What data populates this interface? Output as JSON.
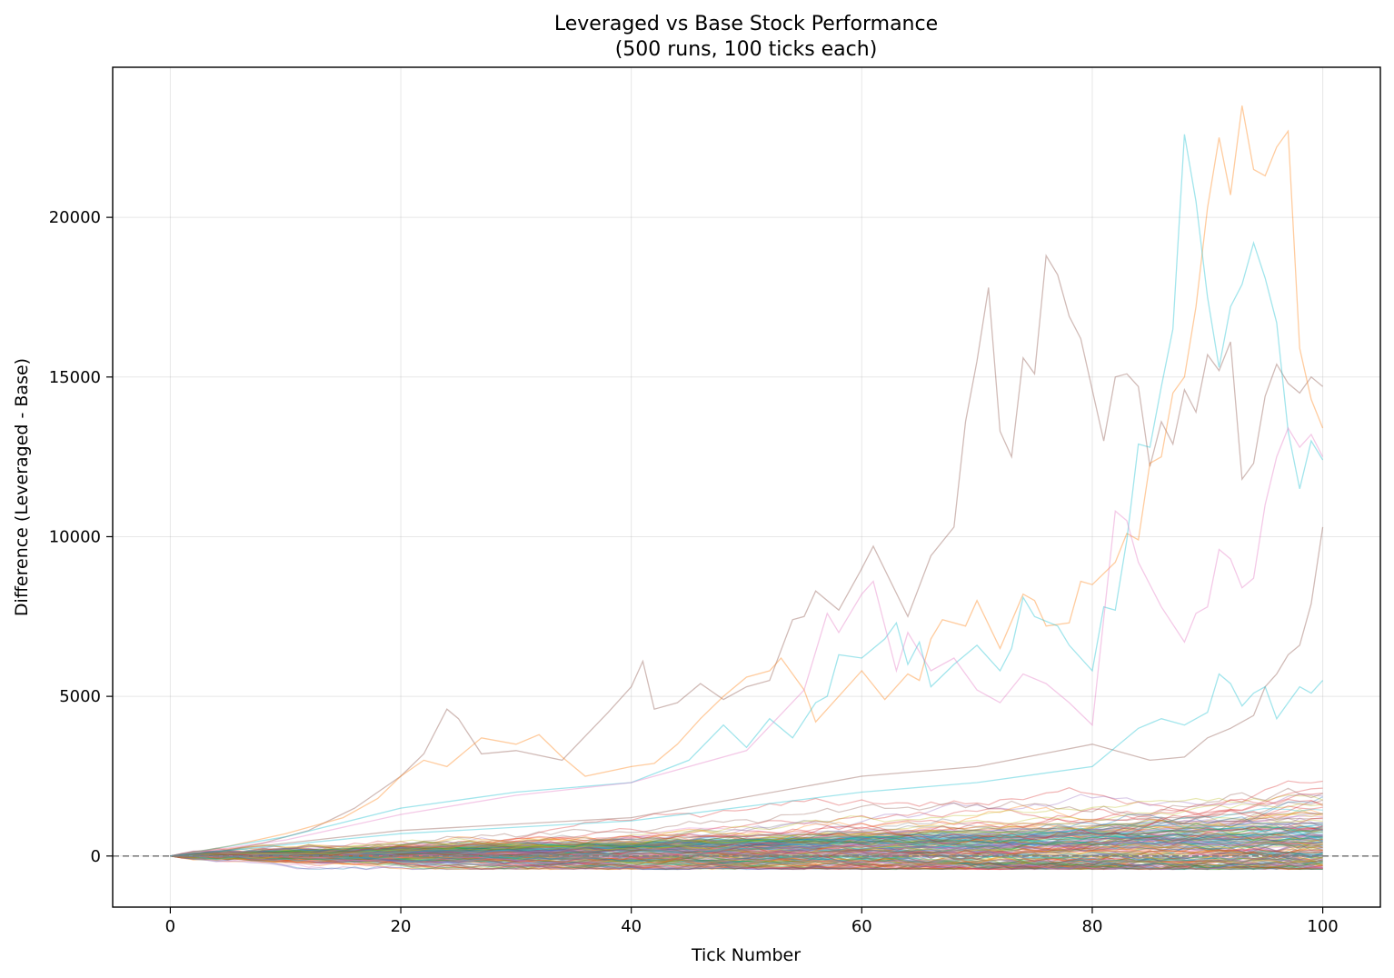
{
  "chart_data": {
    "type": "line",
    "title": "Leveraged vs Base Stock Performance",
    "subtitle": "(500 runs, 100 ticks each)",
    "xlabel": "Tick Number",
    "ylabel": "Difference (Leveraged - Base)",
    "xlim": [
      -5,
      105
    ],
    "ylim": [
      -1600,
      24700
    ],
    "x_ticks": [
      0,
      20,
      40,
      60,
      80,
      100
    ],
    "y_ticks": [
      0,
      5000,
      10000,
      15000,
      20000
    ],
    "grid": true,
    "legend": "none",
    "reference_line": {
      "y": 0,
      "style": "dashed",
      "color": "#808080"
    },
    "num_runs": 500,
    "num_ticks": 100,
    "highlight_series": [
      {
        "color": "#8c564b",
        "points": [
          [
            0,
            0
          ],
          [
            4,
            120
          ],
          [
            8,
            400
          ],
          [
            12,
            800
          ],
          [
            16,
            1500
          ],
          [
            20,
            2500
          ],
          [
            22,
            3200
          ],
          [
            24,
            4600
          ],
          [
            25,
            4300
          ],
          [
            27,
            3200
          ],
          [
            30,
            3300
          ],
          [
            34,
            3000
          ],
          [
            38,
            4500
          ],
          [
            40,
            5300
          ],
          [
            41,
            6100
          ],
          [
            42,
            4600
          ],
          [
            44,
            4800
          ],
          [
            46,
            5400
          ],
          [
            48,
            4900
          ],
          [
            50,
            5300
          ],
          [
            52,
            5500
          ],
          [
            54,
            7400
          ],
          [
            55,
            7500
          ],
          [
            56,
            8300
          ],
          [
            58,
            7700
          ],
          [
            60,
            9000
          ],
          [
            61,
            9700
          ],
          [
            64,
            7500
          ],
          [
            66,
            9400
          ],
          [
            68,
            10300
          ],
          [
            69,
            13600
          ],
          [
            70,
            15500
          ],
          [
            71,
            17800
          ],
          [
            72,
            13300
          ],
          [
            73,
            12500
          ],
          [
            74,
            15600
          ],
          [
            75,
            15100
          ],
          [
            76,
            18800
          ],
          [
            77,
            18200
          ],
          [
            78,
            16900
          ],
          [
            79,
            16200
          ],
          [
            81,
            13000
          ],
          [
            82,
            15000
          ],
          [
            83,
            15100
          ],
          [
            84,
            14700
          ],
          [
            85,
            12200
          ],
          [
            86,
            13600
          ],
          [
            87,
            12900
          ],
          [
            88,
            14600
          ],
          [
            89,
            13900
          ],
          [
            90,
            15700
          ],
          [
            91,
            15200
          ],
          [
            92,
            16100
          ],
          [
            93,
            11800
          ],
          [
            94,
            12300
          ],
          [
            95,
            14400
          ],
          [
            96,
            15400
          ],
          [
            97,
            14800
          ],
          [
            98,
            14500
          ],
          [
            99,
            15000
          ],
          [
            100,
            14700
          ]
        ]
      },
      {
        "color": "#ff7f0e",
        "points": [
          [
            0,
            0
          ],
          [
            5,
            300
          ],
          [
            10,
            700
          ],
          [
            15,
            1200
          ],
          [
            18,
            1800
          ],
          [
            20,
            2500
          ],
          [
            22,
            3000
          ],
          [
            24,
            2800
          ],
          [
            27,
            3700
          ],
          [
            30,
            3500
          ],
          [
            32,
            3800
          ],
          [
            34,
            3100
          ],
          [
            36,
            2500
          ],
          [
            40,
            2800
          ],
          [
            42,
            2900
          ],
          [
            44,
            3500
          ],
          [
            46,
            4300
          ],
          [
            48,
            5000
          ],
          [
            50,
            5600
          ],
          [
            52,
            5800
          ],
          [
            53,
            6200
          ],
          [
            55,
            5200
          ],
          [
            56,
            4200
          ],
          [
            58,
            5000
          ],
          [
            60,
            5800
          ],
          [
            62,
            4900
          ],
          [
            64,
            5700
          ],
          [
            65,
            5500
          ],
          [
            66,
            6800
          ],
          [
            67,
            7400
          ],
          [
            69,
            7200
          ],
          [
            70,
            8000
          ],
          [
            72,
            6500
          ],
          [
            74,
            8200
          ],
          [
            75,
            8000
          ],
          [
            76,
            7200
          ],
          [
            78,
            7300
          ],
          [
            79,
            8600
          ],
          [
            80,
            8500
          ],
          [
            82,
            9200
          ],
          [
            83,
            10100
          ],
          [
            84,
            9900
          ],
          [
            85,
            12300
          ],
          [
            86,
            12500
          ],
          [
            87,
            14500
          ],
          [
            88,
            15000
          ],
          [
            89,
            17200
          ],
          [
            90,
            20300
          ],
          [
            91,
            22500
          ],
          [
            92,
            20700
          ],
          [
            93,
            23500
          ],
          [
            94,
            21500
          ],
          [
            95,
            21300
          ],
          [
            96,
            22200
          ],
          [
            97,
            22700
          ],
          [
            98,
            15900
          ],
          [
            99,
            14300
          ],
          [
            100,
            13400
          ]
        ]
      },
      {
        "color": "#17becf",
        "points": [
          [
            0,
            0
          ],
          [
            10,
            600
          ],
          [
            20,
            1500
          ],
          [
            30,
            2000
          ],
          [
            40,
            2300
          ],
          [
            45,
            3000
          ],
          [
            48,
            4100
          ],
          [
            50,
            3400
          ],
          [
            52,
            4300
          ],
          [
            54,
            3700
          ],
          [
            56,
            4800
          ],
          [
            57,
            5000
          ],
          [
            58,
            6300
          ],
          [
            60,
            6200
          ],
          [
            62,
            6800
          ],
          [
            63,
            7300
          ],
          [
            64,
            6000
          ],
          [
            65,
            6700
          ],
          [
            66,
            5300
          ],
          [
            68,
            6000
          ],
          [
            70,
            6600
          ],
          [
            72,
            5800
          ],
          [
            73,
            6500
          ],
          [
            74,
            8100
          ],
          [
            75,
            7500
          ],
          [
            77,
            7200
          ],
          [
            78,
            6600
          ],
          [
            80,
            5800
          ],
          [
            81,
            7800
          ],
          [
            82,
            7700
          ],
          [
            83,
            9900
          ],
          [
            84,
            12900
          ],
          [
            85,
            12800
          ],
          [
            86,
            14700
          ],
          [
            87,
            16500
          ],
          [
            88,
            22600
          ],
          [
            89,
            20500
          ],
          [
            90,
            17500
          ],
          [
            91,
            15300
          ],
          [
            92,
            17200
          ],
          [
            93,
            17900
          ],
          [
            94,
            19200
          ],
          [
            95,
            18100
          ],
          [
            96,
            16700
          ],
          [
            97,
            13300
          ],
          [
            98,
            11500
          ],
          [
            99,
            13000
          ],
          [
            100,
            12400
          ]
        ]
      },
      {
        "color": "#e377c2",
        "points": [
          [
            0,
            0
          ],
          [
            10,
            500
          ],
          [
            20,
            1300
          ],
          [
            30,
            1900
          ],
          [
            40,
            2300
          ],
          [
            50,
            3300
          ],
          [
            55,
            5200
          ],
          [
            57,
            7600
          ],
          [
            58,
            7000
          ],
          [
            60,
            8200
          ],
          [
            61,
            8600
          ],
          [
            63,
            5800
          ],
          [
            64,
            7000
          ],
          [
            66,
            5800
          ],
          [
            68,
            6200
          ],
          [
            70,
            5200
          ],
          [
            72,
            4800
          ],
          [
            74,
            5700
          ],
          [
            76,
            5400
          ],
          [
            78,
            4800
          ],
          [
            80,
            4100
          ],
          [
            82,
            10800
          ],
          [
            83,
            10500
          ],
          [
            84,
            9200
          ],
          [
            86,
            7800
          ],
          [
            88,
            6700
          ],
          [
            89,
            7600
          ],
          [
            90,
            7800
          ],
          [
            91,
            9600
          ],
          [
            92,
            9300
          ],
          [
            93,
            8400
          ],
          [
            94,
            8700
          ],
          [
            95,
            11000
          ],
          [
            96,
            12500
          ],
          [
            97,
            13400
          ],
          [
            98,
            12800
          ],
          [
            99,
            13200
          ],
          [
            100,
            12500
          ]
        ]
      },
      {
        "color": "#8c564b",
        "points": [
          [
            0,
            0
          ],
          [
            20,
            800
          ],
          [
            40,
            1200
          ],
          [
            60,
            2500
          ],
          [
            70,
            2800
          ],
          [
            80,
            3500
          ],
          [
            85,
            3000
          ],
          [
            88,
            3100
          ],
          [
            90,
            3700
          ],
          [
            92,
            4000
          ],
          [
            94,
            4400
          ],
          [
            95,
            5300
          ],
          [
            96,
            5700
          ],
          [
            97,
            6300
          ],
          [
            98,
            6600
          ],
          [
            99,
            7900
          ],
          [
            100,
            10300
          ]
        ]
      },
      {
        "color": "#17becf",
        "points": [
          [
            0,
            0
          ],
          [
            20,
            700
          ],
          [
            40,
            1100
          ],
          [
            60,
            2000
          ],
          [
            70,
            2300
          ],
          [
            80,
            2800
          ],
          [
            84,
            4000
          ],
          [
            86,
            4300
          ],
          [
            88,
            4100
          ],
          [
            90,
            4500
          ],
          [
            91,
            5700
          ],
          [
            92,
            5400
          ],
          [
            93,
            4700
          ],
          [
            94,
            5100
          ],
          [
            95,
            5300
          ],
          [
            96,
            4300
          ],
          [
            97,
            4800
          ],
          [
            98,
            5300
          ],
          [
            99,
            5100
          ],
          [
            100,
            5500
          ]
        ]
      }
    ],
    "band_series_colors": [
      "#1f77b4",
      "#ff7f0e",
      "#2ca02c",
      "#d62728",
      "#9467bd",
      "#8c564b",
      "#e377c2",
      "#7f7f7f",
      "#bcbd22",
      "#17becf"
    ]
  }
}
